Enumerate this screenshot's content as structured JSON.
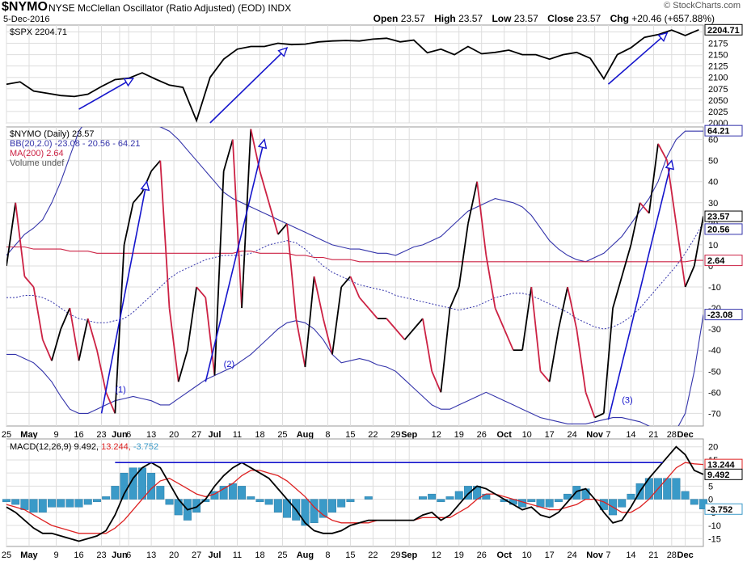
{
  "header": {
    "symbol": "$NYMO",
    "name": "NYSE McClellan Oscillator (Ratio Adjusted) (EOD)",
    "exchange": "INDX",
    "source": "© StockCharts.com",
    "date": "5-Dec-2016",
    "open_label": "Open",
    "open": "23.57",
    "high_label": "High",
    "high": "23.57",
    "low_label": "Low",
    "low": "23.57",
    "close_label": "Close",
    "close": "23.57",
    "chg_label": "Chg",
    "chg": "+20.46 (+657.88%)",
    "up_color": "#22aa44"
  },
  "x_axis": {
    "labels": [
      {
        "t": 0,
        "text": "25"
      },
      {
        "t": 5,
        "text": "May",
        "month": true
      },
      {
        "t": 11,
        "text": "9"
      },
      {
        "t": 16,
        "text": "16"
      },
      {
        "t": 21,
        "text": "23"
      },
      {
        "t": 25,
        "text": "Jun",
        "month": true
      },
      {
        "t": 27,
        "text": "6"
      },
      {
        "t": 32,
        "text": "13"
      },
      {
        "t": 37,
        "text": "20"
      },
      {
        "t": 42,
        "text": "27"
      },
      {
        "t": 46,
        "text": "Jul",
        "month": true
      },
      {
        "t": 51,
        "text": "11"
      },
      {
        "t": 56,
        "text": "18"
      },
      {
        "t": 61,
        "text": "25"
      },
      {
        "t": 66,
        "text": "Aug",
        "month": true
      },
      {
        "t": 71,
        "text": "8"
      },
      {
        "t": 76,
        "text": "15"
      },
      {
        "t": 81,
        "text": "22"
      },
      {
        "t": 86,
        "text": "29"
      },
      {
        "t": 89,
        "text": "Sep",
        "month": true
      },
      {
        "t": 95,
        "text": "12"
      },
      {
        "t": 100,
        "text": "19"
      },
      {
        "t": 105,
        "text": "26"
      },
      {
        "t": 110,
        "text": "Oct",
        "month": true
      },
      {
        "t": 115,
        "text": "10"
      },
      {
        "t": 120,
        "text": "17"
      },
      {
        "t": 125,
        "text": "24"
      },
      {
        "t": 130,
        "text": "Nov",
        "month": true
      },
      {
        "t": 133,
        "text": "7"
      },
      {
        "t": 138,
        "text": "14"
      },
      {
        "t": 143,
        "text": "21"
      },
      {
        "t": 147,
        "text": "28"
      },
      {
        "t": 150,
        "text": "Dec",
        "month": true
      }
    ]
  },
  "colors": {
    "price": "#000000",
    "up": "#000000",
    "down": "#cc2244",
    "bb": "#3333aa",
    "ma": "#cc2244",
    "annot": "#1515cc",
    "hist": "#3a9ac8",
    "macd": "#000000",
    "signal": "#dd2222",
    "grid": "#dddddd"
  },
  "annotations": {
    "labels": [
      "(1)",
      "(2)",
      "(3)"
    ]
  },
  "chart_data": [
    {
      "type": "line",
      "legend": "$SPX 2204.71",
      "last_label": "2204.71",
      "ylim": [
        2000,
        2215
      ],
      "yticks": [
        2000,
        2025,
        2050,
        2075,
        2100,
        2125,
        2150,
        2175,
        2200
      ],
      "x": [
        0,
        3,
        6,
        9,
        12,
        15,
        18,
        21,
        24,
        27,
        30,
        33,
        36,
        39,
        42,
        45,
        48,
        51,
        54,
        57,
        60,
        63,
        66,
        69,
        72,
        75,
        78,
        81,
        84,
        87,
        90,
        93,
        96,
        99,
        102,
        105,
        108,
        111,
        114,
        117,
        120,
        123,
        126,
        129,
        132,
        135,
        138,
        141,
        144,
        147,
        150,
        153
      ],
      "values": [
        2085,
        2090,
        2070,
        2065,
        2060,
        2058,
        2063,
        2080,
        2095,
        2098,
        2110,
        2096,
        2083,
        2078,
        2005,
        2100,
        2140,
        2162,
        2168,
        2168,
        2175,
        2172,
        2173,
        2178,
        2180,
        2181,
        2180,
        2184,
        2186,
        2178,
        2182,
        2154,
        2162,
        2150,
        2168,
        2152,
        2155,
        2160,
        2150,
        2150,
        2140,
        2150,
        2155,
        2142,
        2097,
        2150,
        2165,
        2188,
        2194,
        2204,
        2192,
        2204.71
      ]
    },
    {
      "type": "line",
      "legend": "$NYMO (Daily) 23.57",
      "bb_legend": "BB(20,2.0) -23.08 - 20.56 - 64.21",
      "ma_legend": "MA(200) 2.64",
      "volume_legend": "Volume undef",
      "right_labels": [
        "64.21",
        "23.57",
        "20.56",
        "2.64",
        "-23.08"
      ],
      "ylim": [
        -76,
        66
      ],
      "yticks": [
        -70,
        -60,
        -50,
        -40,
        -30,
        -20,
        -10,
        0,
        10,
        20,
        30,
        40,
        50,
        60
      ],
      "x": [
        0,
        2,
        4,
        6,
        8,
        10,
        12,
        14,
        16,
        18,
        20,
        22,
        24,
        26,
        28,
        30,
        32,
        34,
        36,
        38,
        40,
        42,
        44,
        46,
        48,
        50,
        52,
        54,
        56,
        58,
        60,
        62,
        64,
        66,
        68,
        70,
        72,
        74,
        76,
        78,
        80,
        82,
        84,
        86,
        88,
        90,
        92,
        94,
        96,
        98,
        100,
        102,
        104,
        106,
        108,
        110,
        112,
        114,
        116,
        118,
        120,
        122,
        124,
        126,
        128,
        130,
        132,
        134,
        136,
        138,
        140,
        142,
        144,
        146,
        148,
        150,
        152,
        154
      ],
      "values": [
        0,
        30,
        -5,
        -10,
        -35,
        -45,
        -30,
        -20,
        -45,
        -25,
        -40,
        -60,
        -70,
        10,
        30,
        35,
        45,
        50,
        -20,
        -55,
        -40,
        -10,
        -15,
        -52,
        45,
        60,
        -20,
        65,
        45,
        30,
        15,
        20,
        -25,
        -48,
        -5,
        -25,
        -42,
        -10,
        -5,
        -15,
        -20,
        -25,
        -25,
        -30,
        -35,
        -30,
        -25,
        -50,
        -60,
        -20,
        -10,
        20,
        40,
        5,
        -20,
        -30,
        -40,
        -40,
        -10,
        -50,
        -55,
        -30,
        -10,
        -30,
        -60,
        -72,
        -70,
        -20,
        -5,
        10,
        30,
        25,
        58,
        50,
        20,
        -10,
        0,
        23.57
      ],
      "bb_upper": [
        5,
        10,
        15,
        18,
        22,
        30,
        40,
        52,
        64,
        70,
        72,
        74,
        75,
        74,
        72,
        70,
        68,
        66,
        64,
        60,
        55,
        50,
        45,
        40,
        35,
        32,
        30,
        28,
        26,
        24,
        22,
        20,
        18,
        16,
        14,
        12,
        10,
        9,
        8,
        8,
        7,
        6,
        6,
        5,
        7,
        9,
        10,
        12,
        14,
        18,
        22,
        26,
        28,
        30,
        32,
        31,
        30,
        28,
        24,
        18,
        12,
        8,
        5,
        3,
        2,
        4,
        6,
        10,
        14,
        20,
        26,
        32,
        40,
        52,
        60,
        64,
        64,
        64
      ],
      "bb_lower": [
        -42,
        -42,
        -44,
        -46,
        -50,
        -55,
        -62,
        -68,
        -70,
        -70,
        -68,
        -66,
        -64,
        -63,
        -62,
        -63,
        -64,
        -66,
        -66,
        -63,
        -60,
        -57,
        -54,
        -52,
        -50,
        -48,
        -45,
        -42,
        -38,
        -34,
        -30,
        -27,
        -26,
        -27,
        -30,
        -35,
        -42,
        -46,
        -45,
        -44,
        -45,
        -47,
        -48,
        -50,
        -54,
        -58,
        -62,
        -66,
        -68,
        -68,
        -66,
        -64,
        -62,
        -60,
        -62,
        -64,
        -66,
        -68,
        -70,
        -72,
        -73,
        -74,
        -75,
        -75,
        -75,
        -74,
        -73,
        -72,
        -72,
        -73,
        -74,
        -76,
        -78,
        -80,
        -78,
        -70,
        -50,
        -23.08
      ],
      "bb_mid": [
        -15,
        -15,
        -14,
        -14,
        -15,
        -17,
        -20,
        -23,
        -25,
        -26,
        -27,
        -27,
        -26,
        -25,
        -22,
        -18,
        -14,
        -10,
        -6,
        -3,
        -1,
        1,
        3,
        4,
        5,
        5,
        5,
        6,
        8,
        10,
        11,
        12,
        11,
        8,
        4,
        0,
        -3,
        -5,
        -7,
        -9,
        -10,
        -11,
        -12,
        -14,
        -15,
        -16,
        -17,
        -18,
        -19,
        -20,
        -21,
        -20,
        -19,
        -17,
        -15,
        -14,
        -13,
        -13,
        -14,
        -16,
        -18,
        -20,
        -22,
        -25,
        -27,
        -29,
        -30,
        -29,
        -27,
        -24,
        -20,
        -15,
        -10,
        -5,
        0,
        6,
        13,
        20.56
      ],
      "ma": [
        9,
        9,
        9,
        8,
        8,
        8,
        8,
        7,
        7,
        7,
        6,
        6,
        6,
        6,
        6,
        6,
        6,
        6,
        6,
        6,
        6,
        6,
        6,
        6,
        6,
        6,
        7,
        7,
        6,
        6,
        6,
        6,
        5,
        5,
        4,
        4,
        3,
        3,
        3,
        2,
        2,
        2,
        2,
        2,
        2,
        2,
        2,
        2,
        2,
        2,
        2,
        2,
        2,
        2,
        2,
        2,
        2,
        2,
        2,
        2,
        2,
        2,
        2,
        2,
        2,
        2,
        2,
        2,
        2,
        2,
        2,
        2,
        2,
        2,
        2,
        2,
        2.64,
        2.64
      ]
    },
    {
      "type": "bar",
      "legend_name": "MACD(12,26,9)",
      "legend_macd": "9.492",
      "legend_signal": "13.244",
      "legend_hist": "-3.752",
      "right_labels": [
        "13.244",
        "9.492",
        "-3.752"
      ],
      "ylim": [
        -18,
        23
      ],
      "yticks": [
        -15,
        -10,
        -5,
        0,
        5,
        10,
        15,
        20
      ],
      "x": [
        0,
        2,
        4,
        6,
        8,
        10,
        12,
        14,
        16,
        18,
        20,
        22,
        24,
        26,
        28,
        30,
        32,
        34,
        36,
        38,
        40,
        42,
        44,
        46,
        48,
        50,
        52,
        54,
        56,
        58,
        60,
        62,
        64,
        66,
        68,
        70,
        72,
        74,
        76,
        78,
        80,
        82,
        84,
        86,
        88,
        90,
        92,
        94,
        96,
        98,
        100,
        102,
        104,
        106,
        108,
        110,
        112,
        114,
        116,
        118,
        120,
        122,
        124,
        126,
        128,
        130,
        132,
        134,
        136,
        138,
        140,
        142,
        144,
        146,
        148,
        150,
        152,
        154
      ],
      "macd": [
        -3,
        -5,
        -8,
        -11,
        -13,
        -13,
        -14,
        -15,
        -16,
        -15,
        -14,
        -12,
        -6,
        2,
        8,
        12,
        14,
        12,
        6,
        0,
        -4,
        -3,
        0,
        5,
        9,
        12,
        14,
        12,
        10,
        8,
        4,
        0,
        -4,
        -9,
        -12,
        -13,
        -13,
        -12,
        -10,
        -9,
        -8,
        -8,
        -8,
        -8,
        -8,
        -8,
        -6,
        -5,
        -8,
        -6,
        -2,
        2,
        5,
        4,
        2,
        0,
        -2,
        -4,
        -3,
        -6,
        -7,
        -5,
        -1,
        3,
        4,
        0,
        -5,
        -9,
        -8,
        -3,
        3,
        8,
        12,
        16,
        20,
        17,
        11,
        9.492
      ],
      "signal": [
        -2,
        -3,
        -4,
        -6,
        -8,
        -10,
        -11,
        -12,
        -13,
        -13,
        -13,
        -13,
        -11,
        -8,
        -4,
        0,
        4,
        7,
        8,
        6,
        4,
        2,
        1,
        2,
        4,
        6,
        9,
        11,
        11,
        10,
        9,
        7,
        4,
        1,
        -3,
        -6,
        -8,
        -9,
        -9,
        -9,
        -9,
        -8,
        -8,
        -8,
        -8,
        -8,
        -7,
        -7,
        -7,
        -7,
        -5,
        -3,
        0,
        2,
        2,
        1,
        0,
        -1,
        -2,
        -3,
        -4,
        -4,
        -3,
        -2,
        0,
        0,
        -1,
        -3,
        -5,
        -5,
        -3,
        0,
        4,
        8,
        12,
        14,
        13.5,
        13.244
      ],
      "histogram": [
        -1,
        -2,
        -4,
        -5,
        -5,
        -3,
        -3,
        -3,
        -3,
        -2,
        -1,
        1,
        5,
        10,
        12,
        12,
        10,
        5,
        -2,
        -6,
        -8,
        -5,
        -1,
        3,
        5,
        6,
        5,
        1,
        -1,
        -2,
        -5,
        -7,
        -8,
        -10,
        -9,
        -7,
        -5,
        -3,
        -1,
        0,
        1,
        0,
        0,
        0,
        0,
        0,
        1,
        2,
        -1,
        1,
        3,
        5,
        5,
        2,
        0,
        -1,
        -2,
        -3,
        -1,
        -3,
        -3,
        -1,
        2,
        5,
        4,
        0,
        -4,
        -6,
        -3,
        2,
        6,
        8,
        8,
        8,
        8,
        3,
        -2,
        -3.752
      ]
    }
  ]
}
